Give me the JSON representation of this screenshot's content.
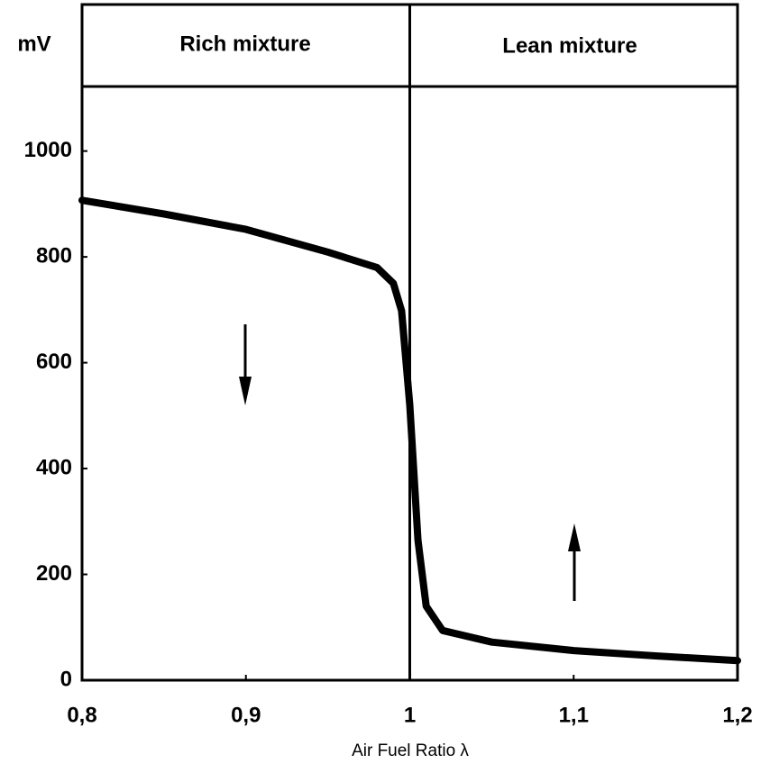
{
  "chart_data": {
    "type": "line",
    "y_label": "mV",
    "x_label": "Air Fuel Ratio  λ",
    "annotations": [
      "Rich mixture",
      "Lean mixture"
    ],
    "x": [
      0.8,
      0.85,
      0.9,
      0.95,
      0.98,
      0.99,
      0.995,
      1.0,
      1.005,
      1.01,
      1.02,
      1.05,
      1.1,
      1.15,
      1.2
    ],
    "values": [
      907,
      881,
      852,
      809,
      780,
      750,
      698,
      520,
      264,
      140,
      94,
      72,
      56,
      46,
      37
    ],
    "color": "#000000",
    "xlim": [
      0.8,
      1.2
    ],
    "xticks": [
      {
        "value": 0.8,
        "label": "0,8"
      },
      {
        "value": 0.9,
        "label": "0,9"
      },
      1,
      {
        "value": 1.1,
        "label": "1,1"
      },
      {
        "value": 1.2,
        "label": "1,2"
      }
    ],
    "ylim": [
      0,
      1122
    ],
    "yticks": [
      0,
      200,
      400,
      600,
      800,
      1000
    ],
    "grid": false
  }
}
